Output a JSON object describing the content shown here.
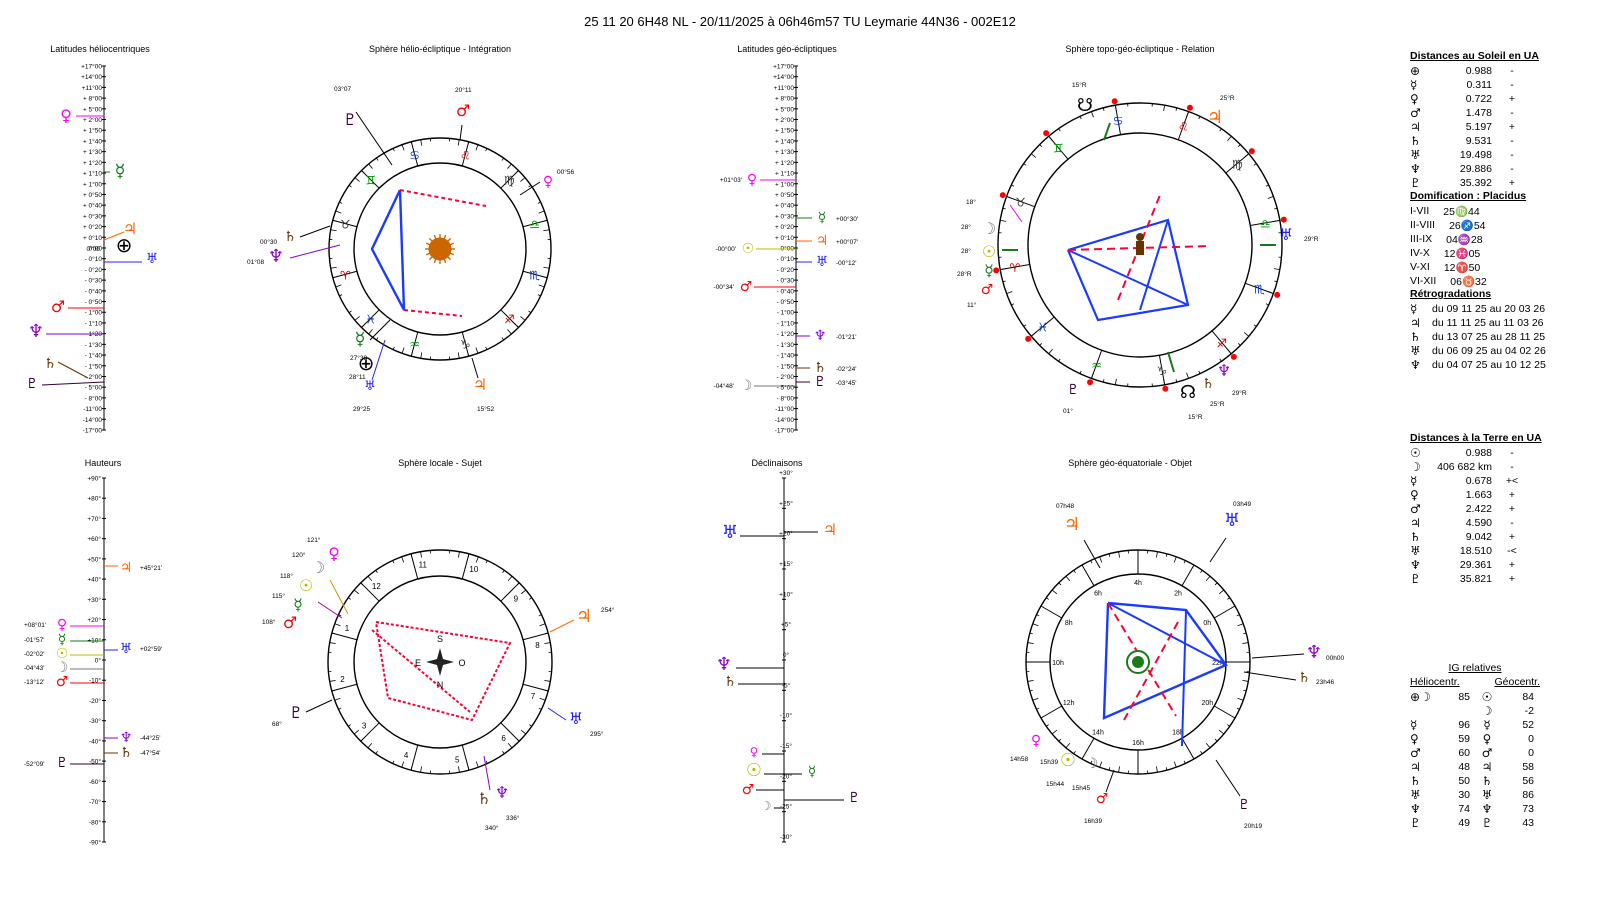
{
  "header": {
    "title": "25 11 20 6H48 NL   -  20/11/2025 à 06h46m57 TU  Leymarie  44N36 - 002E12"
  },
  "panels": {
    "helio_lat": "Latitudes héliocentriques",
    "helio_sphere": "Sphère hélio-écliptique - Intégration",
    "geo_lat": "Latitudes géo-écliptiques",
    "topo_sphere": "Sphère topo-géo-écliptique - Relation",
    "heights": "Hauteurs",
    "local_sphere": "Sphère locale - Sujet",
    "declinations": "Déclinaisons",
    "equatorial_sphere": "Sphère géo-équatoriale - Objet"
  },
  "scales": {
    "lat_ticks": [
      "+17°00",
      "+14°00",
      "+11°00",
      "+ 8°00",
      "+ 5°00",
      "+ 2°00",
      "+ 1°50",
      "+ 1°40",
      "+ 1°30",
      "+ 1°20",
      "+ 1°10",
      "+ 1°00",
      "+ 0°50",
      "+ 0°40",
      "+ 0°30",
      "+ 0°20",
      "+ 0°10",
      "0°00",
      "- 0°10",
      "- 0°20",
      "- 0°30",
      "- 0°40",
      "- 0°50",
      "- 1°00",
      "- 1°10",
      "- 1°20",
      "- 1°30",
      "- 1°40",
      "- 1°50",
      "- 2°00",
      "- 5°00",
      "- 8°00",
      "-11°00",
      "-14°00",
      "-17°00"
    ],
    "height_ticks": [
      "+90°",
      "+80°",
      "+70°",
      "+60°",
      "+50°",
      "+40°",
      "+30°",
      "+20°",
      "+10°",
      "0°",
      "-10°",
      "-20°",
      "-30°",
      "-40°",
      "-50°",
      "-60°",
      "-70°",
      "-80°",
      "-90°"
    ],
    "decl_ticks": [
      "+30°",
      "+25°",
      "+20°",
      "+15°",
      "+10°",
      "+5°",
      "0°",
      "-5°",
      "-10°",
      "-15°",
      "-20°",
      "-25°",
      "-30°"
    ]
  },
  "glyphs": {
    "sun": "☉",
    "moon": "☽",
    "mercury": "☿",
    "venus": "♀",
    "mars": "♂",
    "jupiter": "♃",
    "saturn": "♄",
    "uranus": "♅",
    "neptune": "♆",
    "pluto": "♇",
    "earth": "⊕",
    "node_n": "☊",
    "node_s": "☋",
    "earth_moon": "⊕☽"
  },
  "colors": {
    "sun": "#b8b800",
    "moon": "#777777",
    "mercury": "#1a7a1a",
    "venus": "#ff00ff",
    "mars": "#ff0000",
    "jupiter": "#ff6600",
    "saturn": "#663300",
    "uranus": "#2020ff",
    "neptune": "#8800cc",
    "pluto": "#330033",
    "earth": "#000000",
    "aspect_blue": "#1a3aff",
    "aspect_red": "#ff0033",
    "zodiac_green": "#00aa00"
  },
  "helio_lat_labels": {
    "earth": "0°00"
  },
  "geo_lat_labels": {
    "venus": "+01°03'",
    "mercury": "+00°30'",
    "jupiter": "+00°07'",
    "sun": "-00°00'",
    "uranus": "-00°12'",
    "mars": "-00°34'",
    "neptune": "-01°21'",
    "saturn": "-02°24'",
    "moon": "-04°48'",
    "pluto": "-03°45'"
  },
  "height_labels": {
    "jupiter": "+45°21'",
    "venus": "+08°01'",
    "mercury": "-01°57'",
    "sun": "-02°02'",
    "moon": "-04°43'",
    "mars": "-13°12'",
    "uranus": "+02°59'",
    "neptune": "-44°25'",
    "saturn": "-47°54'",
    "pluto": "-52°09'"
  },
  "helio_sphere_labels": {
    "pluto": "03°07",
    "mars": "20°11",
    "venus": "00°56",
    "saturn": "00°30",
    "neptune": "01°08",
    "mercury": "27°39",
    "earth": "28°11",
    "uranus": "29°25",
    "jupiter": "15°52"
  },
  "topo_sphere_labels": {
    "node_s": "15°R",
    "jupiter": "25°R",
    "venus": "18°",
    "moon": "28°",
    "sun": "28°",
    "mercury": "28°R",
    "mars": "11°",
    "uranus": "29°R",
    "pluto": "01°",
    "node_n": "15°R",
    "saturn": "25°R",
    "neptune": "29°R"
  },
  "local_sphere": {
    "houses": [
      "10",
      "9",
      "8",
      "7",
      "6",
      "5",
      "4",
      "3",
      "2",
      "1",
      "12",
      "11"
    ],
    "compass": {
      "s": "S",
      "n": "N",
      "e": "E",
      "o": "O"
    },
    "labels": {
      "venus": "121°",
      "moon": "120°",
      "sun": "118°",
      "mercury": "115°",
      "mars": "108°",
      "jupiter": "254°",
      "pluto": "68°",
      "uranus": "295°",
      "saturn": "340°",
      "neptune": "336°"
    }
  },
  "equatorial_sphere": {
    "hours": [
      "6h",
      "4h",
      "2h",
      "0h",
      "22h",
      "20h",
      "18h",
      "16h",
      "14h",
      "12h",
      "10h",
      "8h"
    ],
    "labels": {
      "jupiter": "07h48",
      "uranus": "03h49",
      "neptune": "00h00",
      "saturn": "23h46",
      "pluto": "20h19",
      "mars": "16h39",
      "venus": "14h58",
      "sun": "15h39",
      "mercury": "15h44",
      "moon": "15h45"
    }
  },
  "right_panel": {
    "sun_dist_title": "Distances au Soleil en UA",
    "sun_dist": [
      {
        "g": "⊕",
        "v": "0.988",
        "s": "-"
      },
      {
        "g": "☿",
        "v": "0.311",
        "s": "-"
      },
      {
        "g": "♀",
        "v": "0.722",
        "s": "+"
      },
      {
        "g": "♂",
        "v": "1.478",
        "s": "-"
      },
      {
        "g": "♃",
        "v": "5.197",
        "s": "+"
      },
      {
        "g": "♄",
        "v": "9.531",
        "s": "-"
      },
      {
        "g": "♅",
        "v": "19.498",
        "s": "-"
      },
      {
        "g": "♆",
        "v": "29.886",
        "s": "-"
      },
      {
        "g": "♇",
        "v": "35.392",
        "s": "+"
      }
    ],
    "houses_title": "Domification : Placidus",
    "houses": [
      {
        "k": "I-VII",
        "v": "25♍44"
      },
      {
        "k": "II-VIII",
        "v": "26♐54"
      },
      {
        "k": "III-IX",
        "v": "04♒28"
      },
      {
        "k": "IV-X",
        "v": "12♓05"
      },
      {
        "k": "V-XI",
        "v": "12♈50"
      },
      {
        "k": "VI-XII",
        "v": "06♉32"
      }
    ],
    "retro_title": "Rétrogradations",
    "retro": [
      {
        "g": "☿",
        "t": "du 09 11 25 au 20 03 26"
      },
      {
        "g": "♃",
        "t": "du 11 11 25 au 11 03 26"
      },
      {
        "g": "♄",
        "t": "du 13 07 25 au 28 11 25"
      },
      {
        "g": "♅",
        "t": "du 06 09 25 au 04 02 26"
      },
      {
        "g": "♆",
        "t": "du 04 07 25 au 10 12 25"
      }
    ],
    "earth_dist_title": "Distances à la Terre en UA",
    "earth_dist": [
      {
        "g": "☉",
        "v": "0.988",
        "s": "-"
      },
      {
        "g": "☽",
        "v": "406 682 km",
        "s": "-"
      },
      {
        "g": "☿",
        "v": "0.678",
        "s": "+<"
      },
      {
        "g": "♀",
        "v": "1.663",
        "s": "+"
      },
      {
        "g": "♂",
        "v": "2.422",
        "s": "+"
      },
      {
        "g": "♃",
        "v": "4.590",
        "s": "-"
      },
      {
        "g": "♄",
        "v": "9.042",
        "s": "+"
      },
      {
        "g": "♅",
        "v": "18.510",
        "s": "-<"
      },
      {
        "g": "♆",
        "v": "29.361",
        "s": "+"
      },
      {
        "g": "♇",
        "v": "35.821",
        "s": "+"
      }
    ],
    "ig_title": "IG relatives",
    "ig_col1": "Héliocentr.",
    "ig_col2": "Géocentr.",
    "ig": [
      {
        "g1": "⊕☽",
        "v1": "85",
        "g2": "☉",
        "v2": "84"
      },
      {
        "g1": "",
        "v1": "",
        "g2": "☽",
        "v2": "-2"
      },
      {
        "g1": "☿",
        "v1": "96",
        "g2": "☿",
        "v2": "52"
      },
      {
        "g1": "♀",
        "v1": "59",
        "g2": "♀",
        "v2": "0"
      },
      {
        "g1": "♂",
        "v1": "60",
        "g2": "♂",
        "v2": "0"
      },
      {
        "g1": "♃",
        "v1": "48",
        "g2": "♃",
        "v2": "58"
      },
      {
        "g1": "♄",
        "v1": "50",
        "g2": "♄",
        "v2": "56"
      },
      {
        "g1": "♅",
        "v1": "30",
        "g2": "♅",
        "v2": "86"
      },
      {
        "g1": "♆",
        "v1": "74",
        "g2": "♆",
        "v2": "73"
      },
      {
        "g1": "♇",
        "v1": "49",
        "g2": "♇",
        "v2": "43"
      }
    ]
  }
}
